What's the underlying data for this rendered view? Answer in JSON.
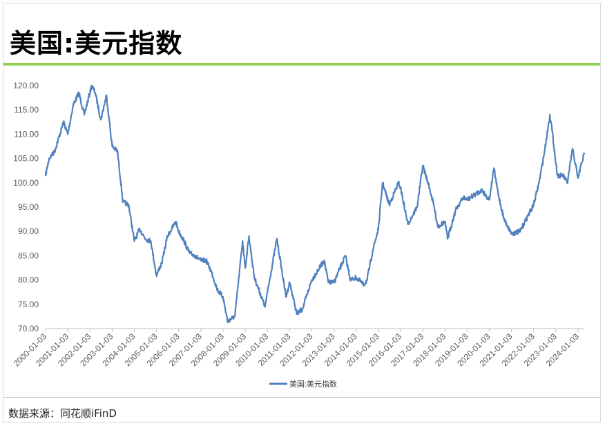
{
  "title": "美国:美元指数",
  "accent_color": "#92d050",
  "source": "数据来源：同花顺iFinD",
  "chart_data": {
    "type": "line",
    "title": "",
    "xlabel": "",
    "ylabel": "",
    "ylim": [
      70,
      120
    ],
    "yticks": [
      "120.00",
      "115.00",
      "110.00",
      "105.00",
      "100.00",
      "95.00",
      "90.00",
      "85.00",
      "80.00",
      "75.00",
      "70.00"
    ],
    "xticks": [
      "2000-01-03",
      "2001-01-03",
      "2002-01-03",
      "2003-01-03",
      "2004-01-03",
      "2005-01-03",
      "2006-01-03",
      "2007-01-03",
      "2008-01-03",
      "2009-01-03",
      "2010-01-03",
      "2011-01-03",
      "2012-01-03",
      "2013-01-03",
      "2014-01-03",
      "2015-01-03",
      "2016-01-03",
      "2017-01-03",
      "2018-01-03",
      "2019-01-03",
      "2020-01-03",
      "2021-01-03",
      "2022-01-03",
      "2023-01-03",
      "2024-01-03"
    ],
    "xrange": [
      "2000-01-03",
      "2024-04-15"
    ],
    "grid": false,
    "legend_position": "bottom",
    "series": [
      {
        "name": "美国:美元指数",
        "color": "#4f81bd",
        "x": [
          "2000-01-03",
          "2000-03-01",
          "2000-06-01",
          "2000-10-25",
          "2001-01-03",
          "2001-04-01",
          "2001-07-05",
          "2001-10-01",
          "2002-01-31",
          "2002-04-01",
          "2002-07-01",
          "2002-10-01",
          "2003-01-03",
          "2003-04-01",
          "2003-07-01",
          "2003-10-01",
          "2004-01-03",
          "2004-04-01",
          "2004-07-01",
          "2004-10-01",
          "2004-12-31",
          "2005-04-01",
          "2005-07-01",
          "2005-11-15",
          "2006-01-03",
          "2006-04-01",
          "2006-07-01",
          "2006-10-01",
          "2007-01-03",
          "2007-04-01",
          "2007-07-01",
          "2007-10-01",
          "2008-01-03",
          "2008-03-17",
          "2008-07-15",
          "2008-11-20",
          "2009-01-03",
          "2009-03-04",
          "2009-06-01",
          "2009-11-25",
          "2010-01-03",
          "2010-06-07",
          "2010-11-04",
          "2011-01-03",
          "2011-05-02",
          "2011-08-01",
          "2012-01-03",
          "2012-07-24",
          "2012-10-01",
          "2013-01-03",
          "2013-07-09",
          "2013-10-01",
          "2014-01-03",
          "2014-05-06",
          "2014-07-01",
          "2014-10-01",
          "2015-01-03",
          "2015-03-13",
          "2015-07-01",
          "2015-12-01",
          "2016-01-03",
          "2016-05-02",
          "2016-10-01",
          "2017-01-03",
          "2017-04-01",
          "2017-07-01",
          "2017-09-08",
          "2018-01-03",
          "2018-02-15",
          "2018-07-01",
          "2018-11-01",
          "2019-01-03",
          "2019-05-01",
          "2019-09-01",
          "2020-01-03",
          "2020-03-19",
          "2020-06-01",
          "2020-09-01",
          "2021-01-06",
          "2021-05-25",
          "2021-09-01",
          "2022-01-03",
          "2022-04-01",
          "2022-07-01",
          "2022-09-27",
          "2022-11-01",
          "2023-01-03",
          "2023-02-01",
          "2023-05-01",
          "2023-07-14",
          "2023-10-03",
          "2024-01-03",
          "2024-03-01",
          "2024-04-15"
        ],
        "y": [
          101.5,
          105.0,
          106.5,
          112.5,
          110.0,
          116.0,
          118.5,
          114.0,
          120.0,
          118.5,
          113.0,
          118.0,
          107.5,
          106.5,
          96.0,
          95.5,
          88.0,
          90.5,
          88.5,
          88.0,
          81.0,
          83.5,
          89.0,
          92.0,
          90.0,
          88.0,
          85.5,
          85.0,
          84.0,
          84.0,
          81.5,
          78.0,
          76.5,
          71.5,
          72.5,
          88.0,
          82.5,
          89.0,
          80.5,
          74.5,
          77.5,
          88.5,
          76.5,
          79.5,
          73.0,
          74.0,
          80.0,
          84.0,
          79.5,
          79.5,
          85.0,
          80.0,
          80.5,
          79.0,
          80.0,
          86.0,
          90.5,
          100.0,
          95.5,
          100.0,
          99.0,
          91.5,
          95.0,
          103.5,
          100.0,
          95.5,
          91.0,
          92.0,
          88.5,
          94.5,
          97.0,
          96.5,
          97.5,
          98.5,
          96.5,
          103.0,
          97.5,
          92.5,
          89.5,
          90.0,
          92.5,
          95.5,
          100.0,
          106.5,
          114.0,
          111.0,
          104.0,
          101.5,
          101.5,
          100.0,
          107.0,
          101.0,
          104.0,
          106.0
        ]
      }
    ]
  }
}
